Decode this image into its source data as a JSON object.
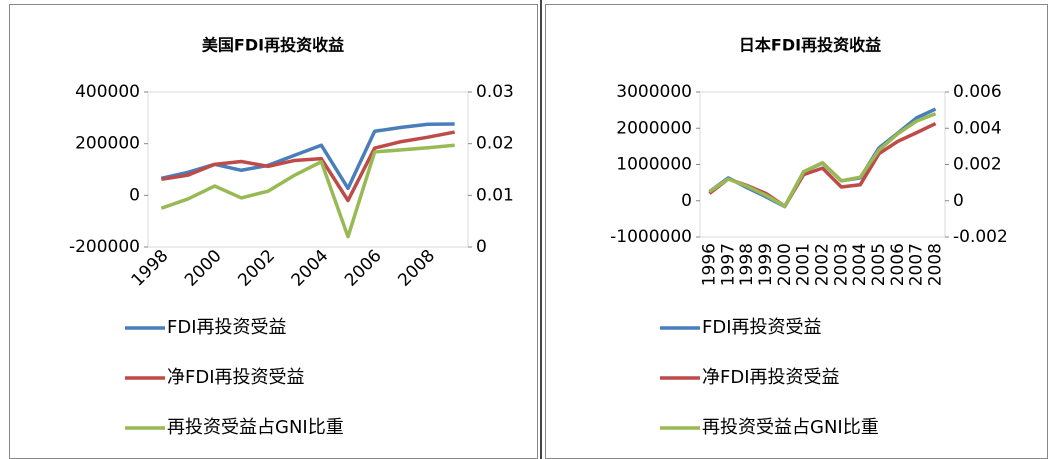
{
  "chart_data": [
    {
      "type": "line",
      "title": "美国FDI再投资收益",
      "categories": [
        "1998",
        null,
        "2000",
        null,
        "2002",
        null,
        "2004",
        null,
        "2006",
        null,
        "2008",
        null
      ],
      "series": [
        {
          "name": "FDI再投资受益",
          "color": "#4a7ebb",
          "values": [
            66000,
            89000,
            120000,
            97000,
            116000,
            155000,
            194000,
            27000,
            248000,
            263000,
            275000,
            276000
          ]
        },
        {
          "name": "净FDI再投资受益",
          "color": "#be4b48",
          "values": [
            62000,
            78000,
            120000,
            131000,
            112000,
            135000,
            142000,
            -20000,
            183000,
            208000,
            225000,
            245000
          ]
        },
        {
          "name": "再投资受益占GNI比重",
          "color": "#98b954",
          "axis": "y2",
          "values": [
            0.0075,
            0.0093,
            0.0118,
            0.0095,
            0.0108,
            0.0139,
            0.0165,
            0.002,
            0.0184,
            0.0188,
            0.0192,
            0.0197
          ]
        }
      ],
      "ylim": [
        -200000,
        400000
      ],
      "yticks": [
        -200000,
        0,
        200000,
        400000
      ],
      "y2lim": [
        0,
        0.03
      ],
      "y2ticks": [
        0,
        0.01,
        0.02,
        0.03
      ],
      "grid": false
    },
    {
      "type": "line",
      "title": "日本FDI再投资收益",
      "categories": [
        "1996",
        "1997",
        "1998",
        "1999",
        "2000",
        "2001",
        "2002",
        "2003",
        "2004",
        "2005",
        "2006",
        "2007",
        "2008"
      ],
      "series": [
        {
          "name": "FDI再投资受益",
          "color": "#4a7ebb",
          "values": [
            250000,
            630000,
            360000,
            110000,
            -160000,
            800000,
            1040000,
            550000,
            630000,
            1460000,
            1870000,
            2290000,
            2530000
          ]
        },
        {
          "name": "净FDI再投资受益",
          "color": "#be4b48",
          "values": [
            200000,
            600000,
            420000,
            200000,
            -150000,
            720000,
            900000,
            380000,
            440000,
            1300000,
            1640000,
            1880000,
            2130000
          ]
        },
        {
          "name": "再投资受益占GNI比重",
          "color": "#98b954",
          "axis": "y2",
          "values": [
            0.0005,
            0.0012,
            0.0008,
            0.0003,
            -0.0003,
            0.0016,
            0.0021,
            0.0011,
            0.0013,
            0.0028,
            0.0037,
            0.0044,
            0.0048
          ]
        }
      ],
      "ylim": [
        -1000000,
        3000000
      ],
      "yticks": [
        -1000000,
        0,
        1000000,
        2000000,
        3000000
      ],
      "y2lim": [
        -0.002,
        0.006
      ],
      "y2ticks": [
        -0.002,
        0,
        0.002,
        0.004,
        0.006
      ],
      "grid": false
    }
  ]
}
